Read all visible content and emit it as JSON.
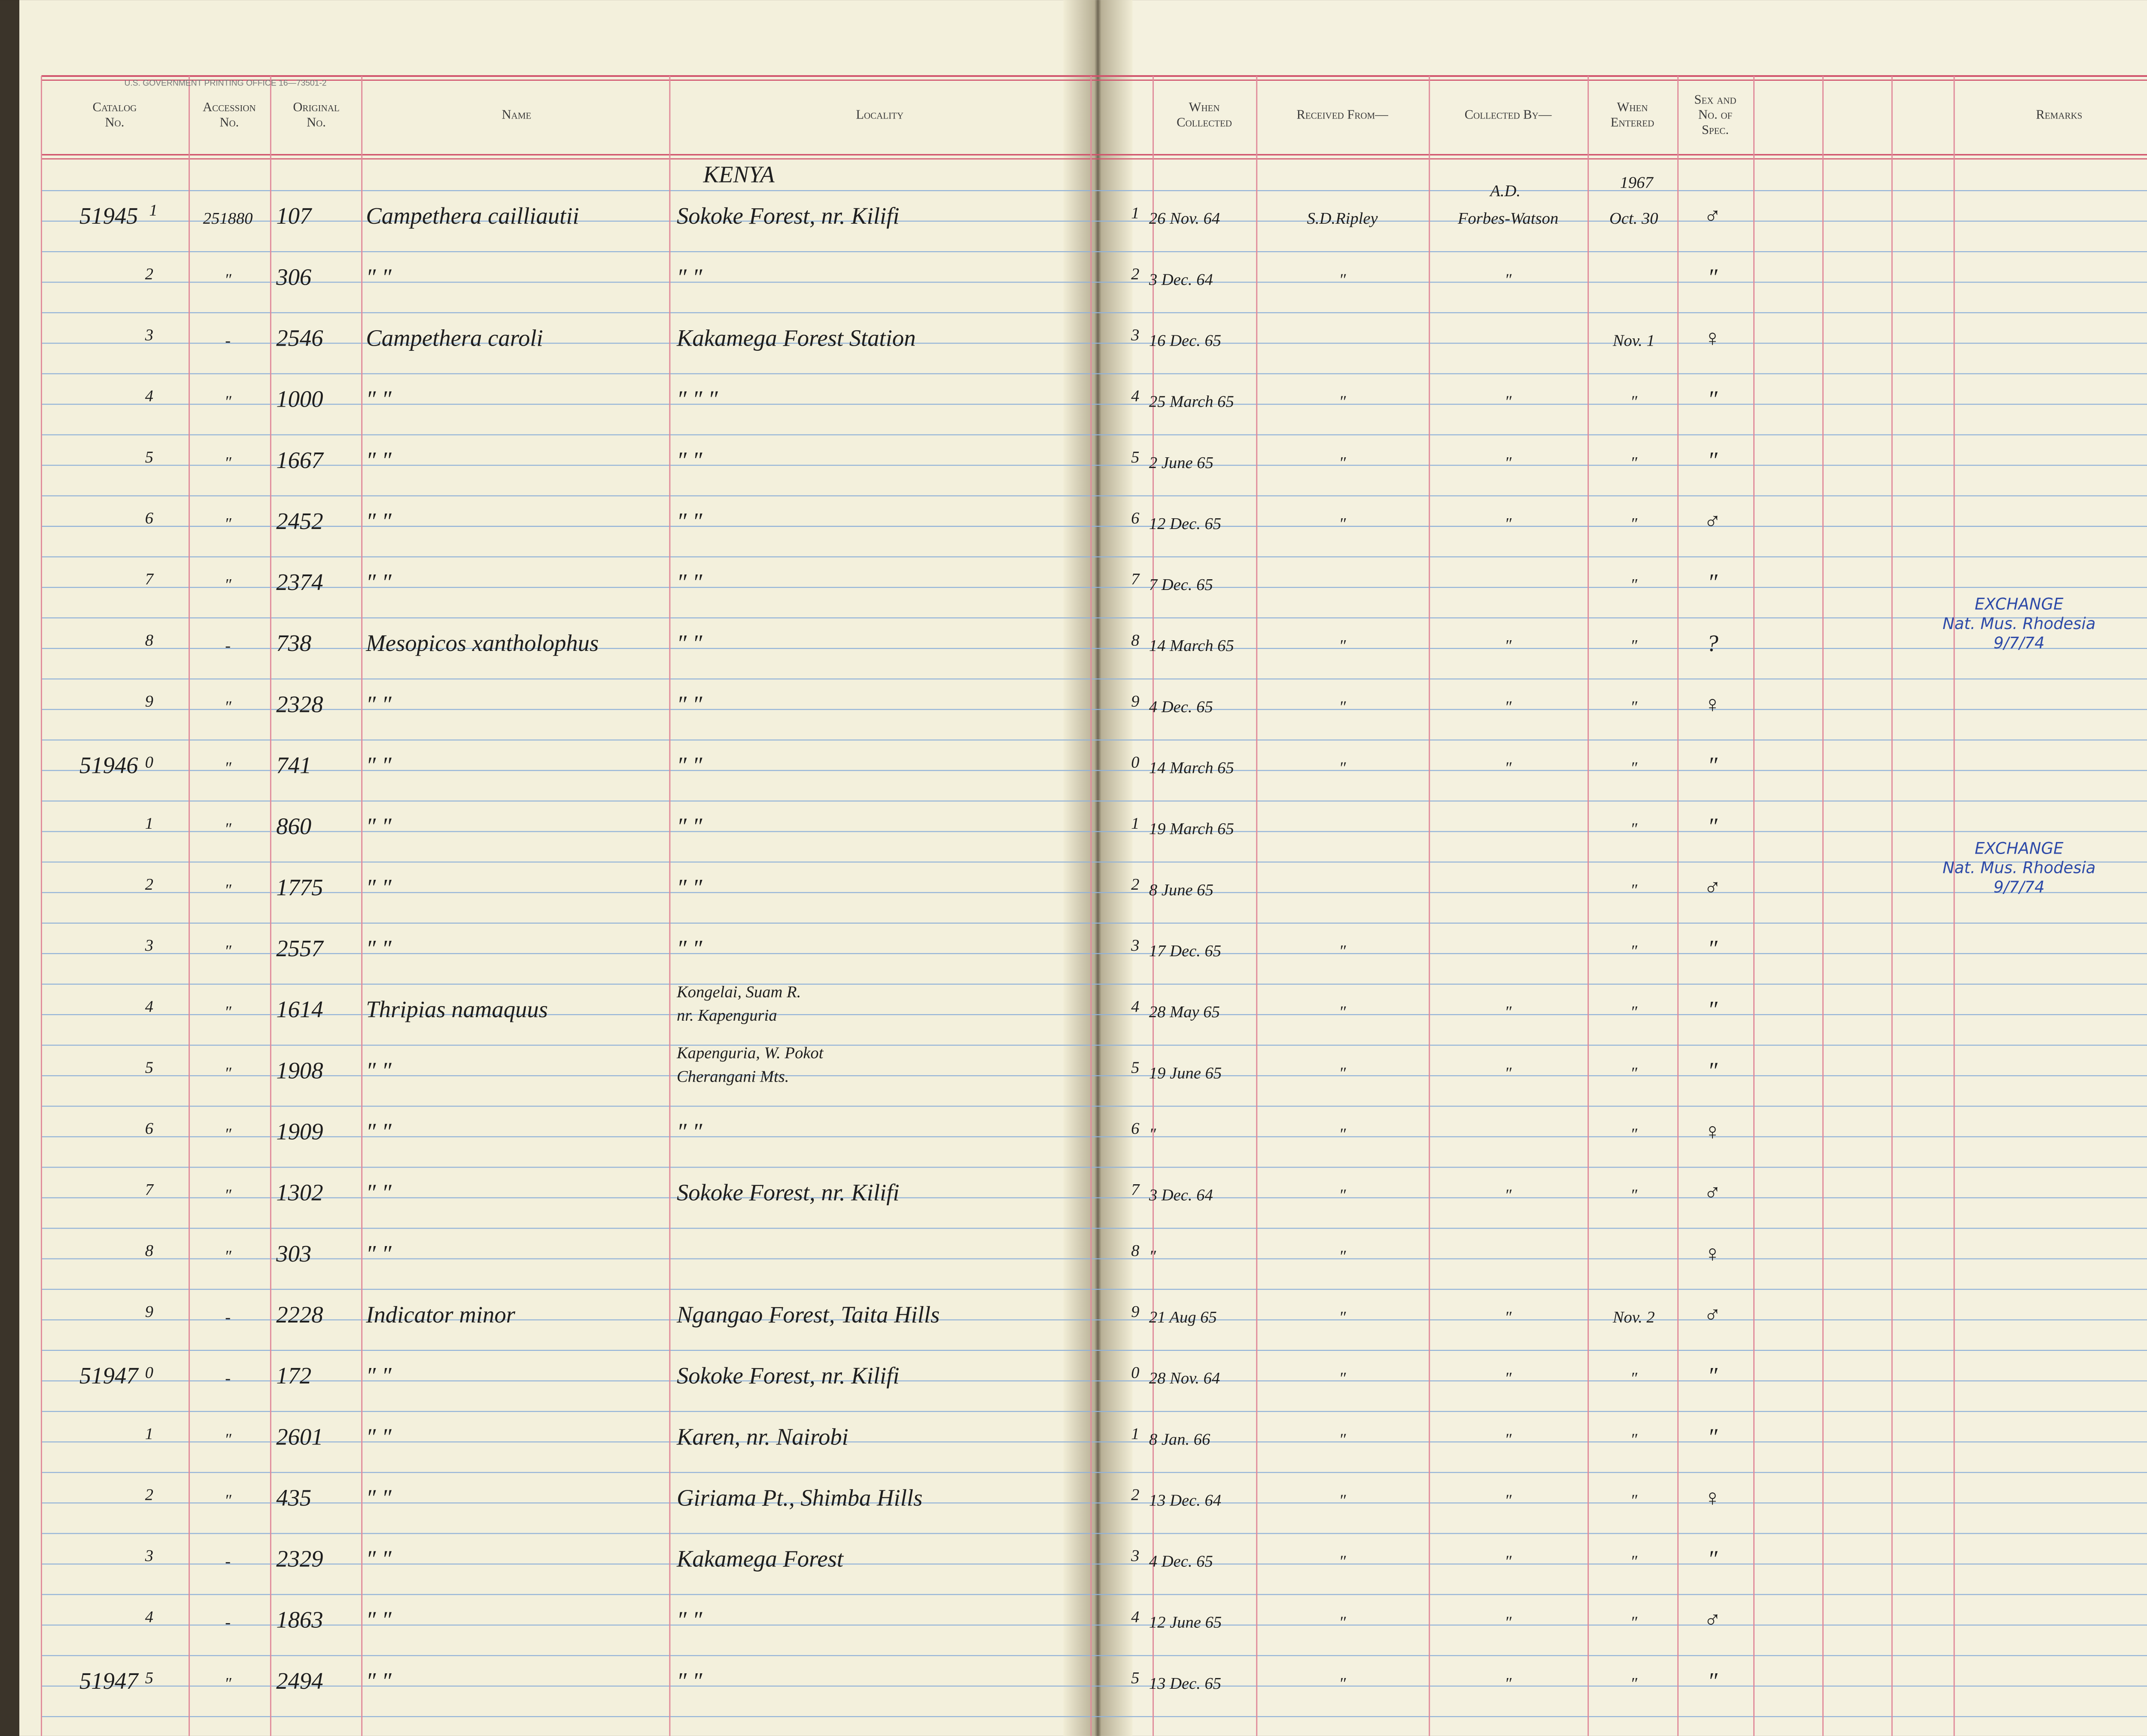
{
  "printer": "U.S. GOVERNMENT PRINTING OFFICE 16—73501-2",
  "headers": {
    "catalog": [
      "Catalog",
      "No."
    ],
    "accession": [
      "Accession",
      "No."
    ],
    "original": [
      "Original",
      "No."
    ],
    "name": [
      "Name"
    ],
    "locality": [
      "Locality"
    ],
    "collected": [
      "When",
      "Collected"
    ],
    "received": [
      "Received From—"
    ],
    "collected_by": [
      "Collected By—"
    ],
    "entered": [
      "When",
      "Entered"
    ],
    "sex": [
      "Sex and",
      "No. of",
      "Spec."
    ],
    "remarks": [
      "Remarks"
    ]
  },
  "annotations": {
    "country": "KENYA",
    "collector_initials": "A.D.",
    "year": "1967"
  },
  "rows": [
    {
      "p": "51945",
      "d": "1",
      "acc": "251880",
      "orig": "107",
      "name": "Campethera cailliautii",
      "loc": "Sokoke Forest, nr. Kilifi",
      "coll": "26 Nov. 64",
      "rec": "S.D.Ripley",
      "by": "Forbes-Watson",
      "ent": "Oct. 30",
      "sex": "♂"
    },
    {
      "d": "2",
      "acc": "″",
      "orig": "306",
      "name": "″      ″",
      "loc": "″        ″",
      "coll": "3 Dec. 64",
      "rec": "″",
      "by": "″",
      "sex": "″"
    },
    {
      "d": "3",
      "acc": "-",
      "orig": "2546",
      "name": "Campethera caroli",
      "loc": "Kakamega Forest Station",
      "coll": "16 Dec. 65",
      "ent": "Nov. 1",
      "sex": "♀"
    },
    {
      "d": "4",
      "acc": "″",
      "orig": "1000",
      "name": "″      ″",
      "loc": "″     ″     ″",
      "coll": "25 March 65",
      "rec": "″",
      "by": "″",
      "ent": "″",
      "sex": "″"
    },
    {
      "d": "5",
      "acc": "″",
      "orig": "1667",
      "name": "″      ″",
      "loc": "″     ″",
      "coll": "2 June 65",
      "rec": "″",
      "by": "″",
      "ent": "″",
      "sex": "″"
    },
    {
      "d": "6",
      "acc": "″",
      "orig": "2452",
      "name": "″      ″",
      "loc": "″     ″",
      "coll": "12 Dec. 65",
      "rec": "″",
      "by": "″",
      "ent": "″",
      "sex": "♂"
    },
    {
      "d": "7",
      "acc": "″",
      "orig": "2374",
      "name": "″      ″",
      "loc": "″     ″",
      "coll": "7 Dec. 65",
      "ent": "″",
      "sex": "″"
    },
    {
      "d": "8",
      "acc": "-",
      "orig": "738",
      "name": "Mesopicos xantholophus",
      "loc": "″     ″",
      "coll": "14 March 65",
      "rec": "″",
      "by": "″",
      "ent": "″",
      "sex": "?",
      "rem": [
        "EXCHANGE",
        "Nat. Mus. Rhodesia",
        "9/7/74"
      ]
    },
    {
      "d": "9",
      "acc": "″",
      "orig": "2328",
      "name": "″      ″",
      "loc": "″     ″",
      "coll": "4 Dec. 65",
      "rec": "″",
      "by": "″",
      "ent": "″",
      "sex": "♀"
    },
    {
      "p": "51946",
      "d": "0",
      "acc": "″",
      "orig": "741",
      "name": "″      ″",
      "loc": "″     ″",
      "coll": "14 March 65",
      "rec": "″",
      "by": "″",
      "ent": "″",
      "sex": "″"
    },
    {
      "d": "1",
      "acc": "″",
      "orig": "860",
      "name": "″      ″",
      "loc": "″     ″",
      "coll": "19 March 65",
      "ent": "″",
      "sex": "″"
    },
    {
      "d": "2",
      "acc": "″",
      "orig": "1775",
      "name": "″      ″",
      "loc": "″     ″",
      "coll": "8 June 65",
      "ent": "″",
      "sex": "♂",
      "rem": [
        "EXCHANGE",
        "Nat. Mus. Rhodesia",
        "9/7/74"
      ]
    },
    {
      "d": "3",
      "acc": "″",
      "orig": "2557",
      "name": "″      ″",
      "loc": "″     ″",
      "coll": "17 Dec. 65",
      "rec": "″",
      "ent": "″",
      "sex": "″"
    },
    {
      "d": "4",
      "acc": "″",
      "orig": "1614",
      "name": "Thripias namaquus",
      "loc": [
        "Kongelai, Suam R.",
        "nr. Kapenguria"
      ],
      "coll": "28 May 65",
      "rec": "″",
      "by": "″",
      "ent": "″",
      "sex": "″"
    },
    {
      "d": "5",
      "acc": "″",
      "orig": "1908",
      "name": "″      ″",
      "loc": [
        "Kapenguria, W. Pokot",
        "Cherangani Mts."
      ],
      "coll": "19 June 65",
      "rec": "″",
      "by": "″",
      "ent": "″",
      "sex": "″"
    },
    {
      "d": "6",
      "acc": "″",
      "orig": "1909",
      "name": "″      ″",
      "loc": "″     ″",
      "coll": "″",
      "rec": "″",
      "ent": "″",
      "sex": "♀"
    },
    {
      "d": "7",
      "acc": "″",
      "orig": "1302",
      "name": "″      ″",
      "loc": "Sokoke Forest, nr. Kilifi",
      "coll": "3 Dec. 64",
      "rec": "″",
      "by": "″",
      "ent": "″",
      "sex": "♂"
    },
    {
      "d": "8",
      "acc": "″",
      "orig": "303",
      "name": "″      ″",
      "coll": "″",
      "rec": "″",
      "sex": "♀"
    },
    {
      "d": "9",
      "acc": "-",
      "orig": "2228",
      "name": "Indicator minor",
      "loc": "Ngangao Forest, Taita Hills",
      "coll": "21 Aug 65",
      "rec": "″",
      "by": "″",
      "ent": "Nov. 2",
      "sex": "♂"
    },
    {
      "p": "51947",
      "d": "0",
      "acc": "-",
      "orig": "172",
      "name": "″      ″",
      "loc": "Sokoke Forest, nr. Kilifi",
      "coll": "28 Nov. 64",
      "rec": "″",
      "by": "″",
      "ent": "″",
      "sex": "″"
    },
    {
      "d": "1",
      "acc": "″",
      "orig": "2601",
      "name": "″      ″",
      "loc": "Karen, nr. Nairobi",
      "coll": "8 Jan. 66",
      "rec": "″",
      "by": "″",
      "ent": "″",
      "sex": "″"
    },
    {
      "d": "2",
      "acc": "″",
      "orig": "435",
      "name": "″      ″",
      "loc": "Giriama Pt., Shimba Hills",
      "coll": "13 Dec. 64",
      "rec": "″",
      "by": "″",
      "ent": "″",
      "sex": "♀"
    },
    {
      "d": "3",
      "acc": "-",
      "orig": "2329",
      "name": "″      ″",
      "loc": "Kakamega Forest",
      "coll": "4 Dec. 65",
      "rec": "″",
      "by": "″",
      "ent": "″",
      "sex": "″"
    },
    {
      "d": "4",
      "acc": "-",
      "orig": "1863",
      "name": "″      ″",
      "loc": "″     ″",
      "coll": "12 June 65",
      "rec": "″",
      "by": "″",
      "ent": "″",
      "sex": "♂"
    },
    {
      "p": "51947",
      "d": "5",
      "acc": "″",
      "orig": "2494",
      "name": "″      ″",
      "loc": "″     ″",
      "coll": "13 Dec. 65",
      "rec": "″",
      "by": "″",
      "ent": "″",
      "sex": "″"
    }
  ]
}
